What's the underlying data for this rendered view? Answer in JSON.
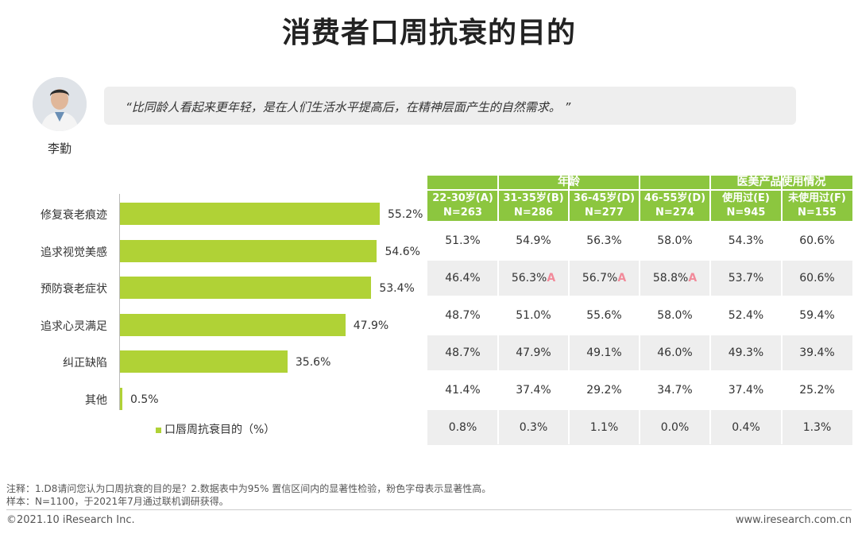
{
  "title": "消费者口周抗衰的目的",
  "speaker": {
    "name": "李勤"
  },
  "quote": "“比同龄人看起来更年轻，是在人们生活水平提高后，在精神层面产生的自然需求。 ”",
  "chart_data": {
    "type": "bar",
    "orientation": "horizontal",
    "categories": [
      "修复衰老痕迹",
      "追求视觉美感",
      "预防衰老症状",
      "追求心灵满足",
      "纠正缺陷",
      "其他"
    ],
    "series": [
      {
        "name": "口唇周抗衰目的（%）",
        "values": [
          55.2,
          54.6,
          53.4,
          47.9,
          35.6,
          0.5
        ]
      }
    ],
    "value_labels": [
      "55.2%",
      "54.6%",
      "53.4%",
      "47.9%",
      "35.6%",
      "0.5%"
    ],
    "legend": "bottom",
    "bar_color": "#b0d236"
  },
  "table": {
    "groups": [
      {
        "label": "年龄",
        "span": 4
      },
      {
        "label": "医美产品使用情况",
        "span": 2
      }
    ],
    "columns": [
      {
        "name": "22-30岁(A)",
        "n": "N=263"
      },
      {
        "name": "31-35岁(B)",
        "n": "N=286"
      },
      {
        "name": "36-45岁(D)",
        "n": "N=277"
      },
      {
        "name": "46-55岁(D)",
        "n": "N=274"
      },
      {
        "name": "使用过(E)",
        "n": "N=945"
      },
      {
        "name": "未使用过(F)",
        "n": "N=155"
      }
    ],
    "rows": [
      [
        {
          "v": "51.3%",
          "s": ""
        },
        {
          "v": "54.9%",
          "s": ""
        },
        {
          "v": "56.3%",
          "s": ""
        },
        {
          "v": "58.0%",
          "s": ""
        },
        {
          "v": "54.3%",
          "s": ""
        },
        {
          "v": "60.6%",
          "s": ""
        }
      ],
      [
        {
          "v": "46.4%",
          "s": ""
        },
        {
          "v": "56.3%",
          "s": "A"
        },
        {
          "v": "56.7%",
          "s": "A"
        },
        {
          "v": "58.8%",
          "s": "A"
        },
        {
          "v": "53.7%",
          "s": ""
        },
        {
          "v": "60.6%",
          "s": ""
        }
      ],
      [
        {
          "v": "48.7%",
          "s": ""
        },
        {
          "v": "51.0%",
          "s": ""
        },
        {
          "v": "55.6%",
          "s": ""
        },
        {
          "v": "58.0%",
          "s": ""
        },
        {
          "v": "52.4%",
          "s": ""
        },
        {
          "v": "59.4%",
          "s": ""
        }
      ],
      [
        {
          "v": "48.7%",
          "s": ""
        },
        {
          "v": "47.9%",
          "s": ""
        },
        {
          "v": "49.1%",
          "s": ""
        },
        {
          "v": "46.0%",
          "s": ""
        },
        {
          "v": "49.3%",
          "s": ""
        },
        {
          "v": "39.4%",
          "s": ""
        }
      ],
      [
        {
          "v": "41.4%",
          "s": ""
        },
        {
          "v": "37.4%",
          "s": ""
        },
        {
          "v": "29.2%",
          "s": ""
        },
        {
          "v": "34.7%",
          "s": ""
        },
        {
          "v": "37.4%",
          "s": ""
        },
        {
          "v": "25.2%",
          "s": ""
        }
      ],
      [
        {
          "v": "0.8%",
          "s": ""
        },
        {
          "v": "0.3%",
          "s": ""
        },
        {
          "v": "1.1%",
          "s": ""
        },
        {
          "v": "0.0%",
          "s": ""
        },
        {
          "v": "0.4%",
          "s": ""
        },
        {
          "v": "1.3%",
          "s": ""
        }
      ]
    ],
    "header_color": "#8cc63f",
    "significance_color": "#f28a9a"
  },
  "notes": {
    "note": "注释：1.D8请问您认为口周抗衰的目的是？2.数据表中为95% 置信区间内的显著性检验，粉色字母表示显著性高。",
    "sample": "样本：N=1100，于2021年7月通过联机调研获得。"
  },
  "footer": {
    "copyright": "©2021.10 iResearch Inc.",
    "website": "www.iresearch.com.cn"
  }
}
